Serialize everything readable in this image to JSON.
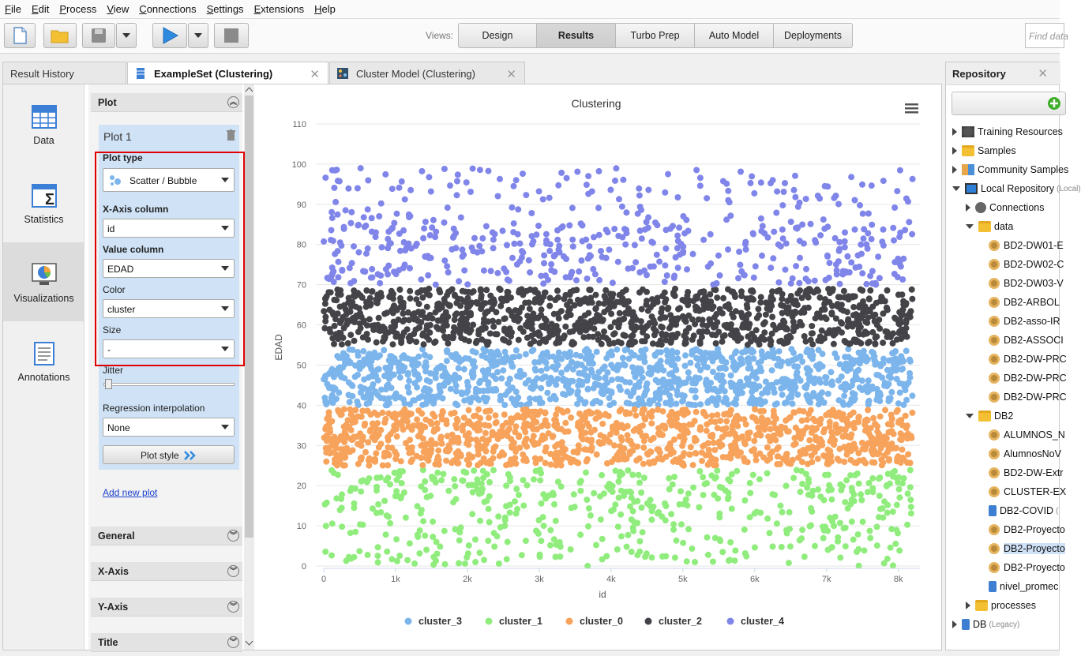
{
  "menu": [
    "File",
    "Edit",
    "Process",
    "View",
    "Connections",
    "Settings",
    "Extensions",
    "Help"
  ],
  "toolbar": {
    "views_label": "Views:",
    "views": [
      "Design",
      "Results",
      "Turbo Prep",
      "Auto Model",
      "Deployments"
    ],
    "active_view": "Results",
    "find_placeholder": "Find data"
  },
  "tabs": {
    "result_history": "Result History",
    "exampleset": "ExampleSet (Clustering)",
    "cluster_model": "Cluster Model (Clustering)"
  },
  "leftnav": [
    "Data",
    "Statistics",
    "Visualizations",
    "Annotations"
  ],
  "plot_panel": {
    "section_plot": "Plot",
    "plot_name": "Plot 1",
    "plot_type_label": "Plot type",
    "plot_type_value": "Scatter / Bubble",
    "x_axis_label": "X-Axis column",
    "x_axis_value": "id",
    "value_label": "Value column",
    "value_value": "EDAD",
    "color_label": "Color",
    "color_value": "cluster",
    "size_label": "Size",
    "size_value": "-",
    "jitter_label": "Jitter",
    "regression_label": "Regression interpolation",
    "regression_value": "None",
    "plot_style": "Plot style",
    "add_new_plot": "Add new plot",
    "sections": [
      "General",
      "X-Axis",
      "Y-Axis",
      "Title"
    ]
  },
  "chart_data": {
    "type": "scatter",
    "title": "Clustering",
    "xlabel": "id",
    "ylabel": "EDAD",
    "xlim": [
      0,
      8300
    ],
    "ylim": [
      0,
      110
    ],
    "x_ticks": [
      "0",
      "1k",
      "2k",
      "3k",
      "4k",
      "5k",
      "6k",
      "7k",
      "8k"
    ],
    "y_ticks": [
      "0",
      "10",
      "20",
      "30",
      "40",
      "50",
      "60",
      "70",
      "80",
      "90",
      "100",
      "110"
    ],
    "legend_position": "bottom",
    "grid": true,
    "series": [
      {
        "name": "cluster_3",
        "color": "#7cb5ec",
        "y_range": [
          40,
          54
        ],
        "density": "dense"
      },
      {
        "name": "cluster_1",
        "color": "#90ed7d",
        "y_range": [
          0,
          24
        ],
        "density": "sparse-below-22"
      },
      {
        "name": "cluster_0",
        "color": "#f7a35c",
        "y_range": [
          25,
          39
        ],
        "density": "dense"
      },
      {
        "name": "cluster_2",
        "color": "#434348",
        "y_range": [
          55,
          69
        ],
        "density": "dense"
      },
      {
        "name": "cluster_4",
        "color": "#8085e9",
        "y_range": [
          70,
          99
        ],
        "density": "sparse-above-85"
      }
    ]
  },
  "repository": {
    "title": "Repository",
    "items": [
      {
        "label": "Training Resources",
        "indent": 0,
        "tri": "r",
        "icon": "training"
      },
      {
        "label": "Samples",
        "indent": 0,
        "tri": "r",
        "icon": "folder"
      },
      {
        "label": "Community Samples",
        "indent": 0,
        "tri": "r",
        "icon": "people"
      },
      {
        "label": "Local Repository",
        "sub": "(Local)",
        "indent": 0,
        "tri": "d",
        "icon": "monitor"
      },
      {
        "label": "Connections",
        "indent": 1,
        "tri": "r",
        "icon": "connections"
      },
      {
        "label": "data",
        "indent": 1,
        "tri": "d",
        "icon": "folder"
      },
      {
        "label": "BD2-DW01-E",
        "indent": 2,
        "tri": "",
        "icon": "gear"
      },
      {
        "label": "BD2-DW02-C",
        "indent": 2,
        "tri": "",
        "icon": "gear"
      },
      {
        "label": "BD2-DW03-V",
        "indent": 2,
        "tri": "",
        "icon": "gear"
      },
      {
        "label": "DB2-ARBOL",
        "indent": 2,
        "tri": "",
        "icon": "gear"
      },
      {
        "label": "DB2-asso-IR",
        "indent": 2,
        "tri": "",
        "icon": "gear"
      },
      {
        "label": "DB2-ASSOCI",
        "indent": 2,
        "tri": "",
        "icon": "gear"
      },
      {
        "label": "DB2-DW-PRC",
        "indent": 2,
        "tri": "",
        "icon": "gear"
      },
      {
        "label": "DB2-DW-PRC",
        "indent": 2,
        "tri": "",
        "icon": "gear"
      },
      {
        "label": "DB2-DW-PRC",
        "indent": 2,
        "tri": "",
        "icon": "gear"
      },
      {
        "label": "DB2",
        "indent": 1,
        "tri": "d",
        "icon": "folder"
      },
      {
        "label": "ALUMNOS_N",
        "indent": 2,
        "tri": "",
        "icon": "gear"
      },
      {
        "label": "AlumnosNoV",
        "indent": 2,
        "tri": "",
        "icon": "gear"
      },
      {
        "label": "BD2-DW-Extr",
        "indent": 2,
        "tri": "",
        "icon": "gear"
      },
      {
        "label": "CLUSTER-EX",
        "indent": 2,
        "tri": "",
        "icon": "gear"
      },
      {
        "label": "DB2-COVID",
        "sub": "(",
        "indent": 2,
        "tri": "",
        "icon": "db"
      },
      {
        "label": "DB2-Proyecto",
        "indent": 2,
        "tri": "",
        "icon": "gear"
      },
      {
        "label": "DB2-Proyecto",
        "indent": 2,
        "tri": "",
        "icon": "gear",
        "selected": true
      },
      {
        "label": "DB2-Proyecto",
        "indent": 2,
        "tri": "",
        "icon": "gear"
      },
      {
        "label": "nivel_promec",
        "indent": 2,
        "tri": "",
        "icon": "db"
      },
      {
        "label": "processes",
        "indent": 1,
        "tri": "r",
        "icon": "folder"
      },
      {
        "label": "DB",
        "sub": "(Legacy)",
        "indent": 0,
        "tri": "r",
        "icon": "db"
      }
    ]
  }
}
